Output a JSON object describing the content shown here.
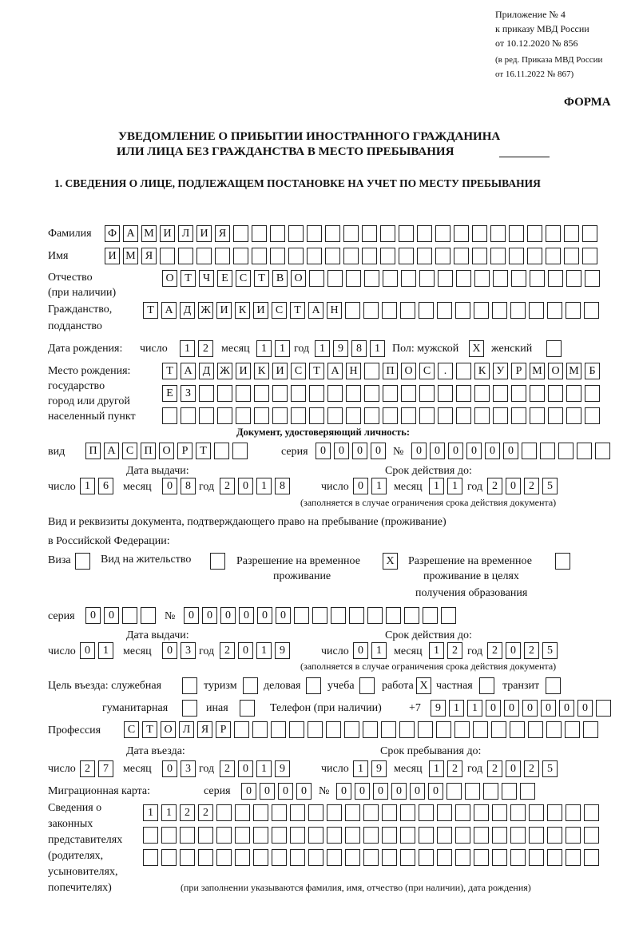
{
  "header": {
    "appendix": "Приложение № 4",
    "order": "к приказу МВД России",
    "order_date": "от 10.12.2020 № 856",
    "edition1": "(в ред. Приказа МВД России",
    "edition2": "от 16.11.2022 № 867)",
    "form": "ФОРМА",
    "title1": "УВЕДОМЛЕНИЕ О ПРИБЫТИИ ИНОСТРАННОГО ГРАЖДАНИНА",
    "title2": "ИЛИ ЛИЦА БЕЗ ГРАЖДАНСТВА В МЕСТО ПРЕБЫВАНИЯ",
    "section1": "1. СВЕДЕНИЯ О ЛИЦЕ, ПОДЛЕЖАЩЕМ ПОСТАНОВКЕ НА УЧЕТ ПО МЕСТУ ПРЕБЫВАНИЯ"
  },
  "labels": {
    "surname": "Фамилия",
    "name": "Имя",
    "patronymic": "Отчество",
    "patronymic2": "(при наличии)",
    "citizenship": "Гражданство,",
    "citizenship2": "подданство",
    "birth_date": "Дата рождения:",
    "day": "число",
    "month": "месяц",
    "year": "год",
    "sex": "Пол: мужской",
    "female": "женский",
    "birth_place": "Место рождения:",
    "bp2": "государство",
    "bp3": "город или другой",
    "bp4": "населенный пункт",
    "id_doc": "Документ, удостоверяющий личность:",
    "kind": "вид",
    "series": "серия",
    "number": "№",
    "issue_date": "Дата выдачи:",
    "valid_until": "Срок действия до:",
    "validity_note": "(заполняется в случае ограничения срока действия документа)",
    "right_doc1": "Вид и реквизиты документа, подтверждающего право на пребывание (проживание)",
    "right_doc2": "в Российской Федерации:",
    "visa": "Виза",
    "residence": "Вид на жительство",
    "temp1": "Разрешение на временное",
    "temp2": "проживание",
    "edu1": "Разрешение на временное",
    "edu2": "проживание в целях",
    "edu3": "получения образования",
    "purpose": "Цель въезда: служебная",
    "tourism": "туризм",
    "business": "деловая",
    "study": "учеба",
    "work": "работа",
    "private": "частная",
    "transit": "транзит",
    "humanitarian": "гуманитарная",
    "other": "иная",
    "phone": "Телефон (при наличии)",
    "phone_prefix": "+7",
    "profession": "Профессия",
    "entry_date": "Дата въезда:",
    "stay_until": "Срок пребывания до:",
    "migration_card": "Миграционная карта:",
    "reps1": "Сведения о",
    "reps2": "законных",
    "reps3": "представителях",
    "reps4": "(родителях,",
    "reps5": "усыновителях,",
    "reps6": "попечителях)",
    "reps_note": "(при заполнении указываются фамилия, имя, отчество (при наличии), дата рождения)"
  },
  "person": {
    "surname": "ФАМИЛИЯ",
    "name": "ИМЯ",
    "patronymic": "ОТЧЕСТВО",
    "citizenship": "ТАДЖИКИСТАН",
    "birth_day": "12",
    "birth_month": "11",
    "birth_year": "1981",
    "sex_male": "X",
    "sex_female": "",
    "birth_place1": "ТАДЖИКИСТАН ПОС. КУРМОМБ",
    "birth_place2": "ЕЗ",
    "birth_place3": ""
  },
  "id_document": {
    "kind": "ПАСПОРТ",
    "series": "0000",
    "number": "000000",
    "issue_day": "16",
    "issue_month": "08",
    "issue_year": "2018",
    "valid_day": "01",
    "valid_month": "11",
    "valid_year": "2025"
  },
  "right_document": {
    "visa": "",
    "residence_permit": "",
    "temporary_residence": "X",
    "temporary_residence_education": "",
    "series": "00",
    "number": "000000",
    "issue_day": "01",
    "issue_month": "03",
    "issue_year": "2019",
    "valid_day": "01",
    "valid_month": "12",
    "valid_year": "2025"
  },
  "purpose": {
    "official": "",
    "tourism": "",
    "business": "",
    "study": "",
    "work": "X",
    "private": "",
    "transit": "",
    "humanitarian": "",
    "other": ""
  },
  "phone": "911000000",
  "profession": "СТОЛЯР",
  "entry": {
    "day": "27",
    "month": "03",
    "year": "2019"
  },
  "stay_until": {
    "day": "19",
    "month": "12",
    "year": "2025"
  },
  "migration_card": {
    "series": "0000",
    "number": "000000"
  },
  "representatives": {
    "line1": "1122",
    "line2": "",
    "line3": ""
  }
}
